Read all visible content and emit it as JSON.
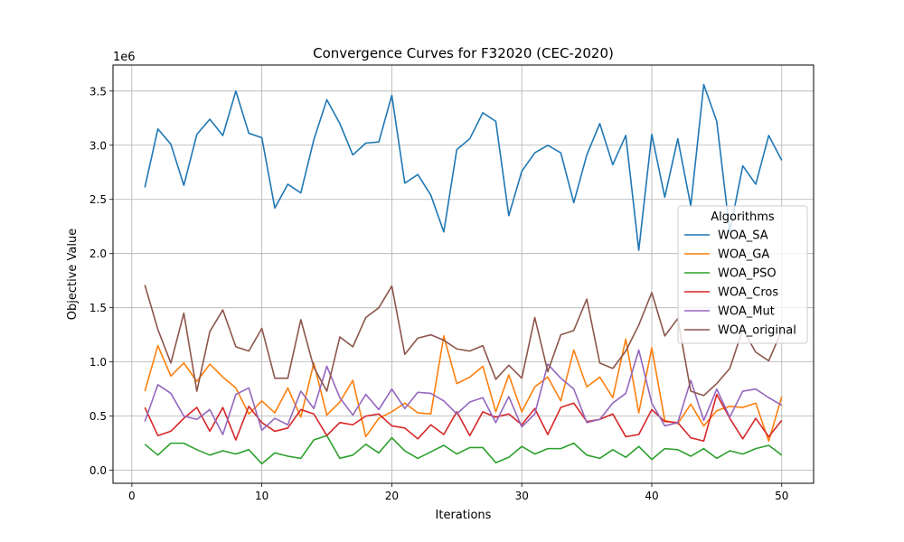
{
  "chart_data": {
    "type": "line",
    "title": "Convergence Curves for F32020 (CEC-2020)",
    "xlabel": "Iterations",
    "ylabel": "Objective Value",
    "y_offset_label": "1e6",
    "y_scale": 1000000,
    "xlim": [
      -1.45,
      52.45
    ],
    "ylim": [
      -120000,
      3740000
    ],
    "xticks": [
      0,
      10,
      20,
      30,
      40,
      50
    ],
    "xtick_labels": [
      "0",
      "10",
      "20",
      "30",
      "40",
      "50"
    ],
    "yticks": [
      0,
      500000,
      1000000,
      1500000,
      2000000,
      2500000,
      3000000,
      3500000
    ],
    "ytick_labels": [
      "0.0",
      "0.5",
      "1.0",
      "1.5",
      "2.0",
      "2.5",
      "3.0",
      "3.5"
    ],
    "grid": true,
    "legend_title": "Algorithms",
    "legend_position": "right",
    "x": [
      1,
      2,
      3,
      4,
      5,
      6,
      7,
      8,
      9,
      10,
      11,
      12,
      13,
      14,
      15,
      16,
      17,
      18,
      19,
      20,
      21,
      22,
      23,
      24,
      25,
      26,
      27,
      28,
      29,
      30,
      31,
      32,
      33,
      34,
      35,
      36,
      37,
      38,
      39,
      40,
      41,
      42,
      43,
      44,
      45,
      46,
      47,
      48,
      49,
      50
    ],
    "series": [
      {
        "name": "WOA_SA",
        "color": "#1f77b4",
        "values": [
          2610000,
          3150000,
          3010000,
          2630000,
          3100000,
          3240000,
          3090000,
          3500000,
          3110000,
          3070000,
          2420000,
          2640000,
          2560000,
          3050000,
          3420000,
          3200000,
          2910000,
          3020000,
          3030000,
          3460000,
          2650000,
          2730000,
          2540000,
          2200000,
          2960000,
          3060000,
          3300000,
          3220000,
          2350000,
          2760000,
          2930000,
          3000000,
          2930000,
          2470000,
          2910000,
          3200000,
          2820000,
          3090000,
          2030000,
          3100000,
          2520000,
          3060000,
          2440000,
          3560000,
          3220000,
          2200000,
          2810000,
          2640000,
          3090000,
          2860000
        ]
      },
      {
        "name": "WOA_GA",
        "color": "#ff7f0e",
        "values": [
          730000,
          1150000,
          870000,
          990000,
          820000,
          980000,
          860000,
          760000,
          520000,
          640000,
          530000,
          760000,
          490000,
          990000,
          510000,
          630000,
          830000,
          310000,
          480000,
          540000,
          620000,
          530000,
          520000,
          1240000,
          800000,
          860000,
          960000,
          540000,
          880000,
          540000,
          770000,
          860000,
          640000,
          1110000,
          770000,
          860000,
          670000,
          1210000,
          530000,
          1130000,
          460000,
          430000,
          610000,
          410000,
          550000,
          590000,
          580000,
          620000,
          270000,
          680000
        ]
      },
      {
        "name": "WOA_PSO",
        "color": "#2ca02c",
        "values": [
          240000,
          140000,
          250000,
          250000,
          190000,
          140000,
          180000,
          150000,
          190000,
          60000,
          160000,
          130000,
          110000,
          280000,
          320000,
          110000,
          140000,
          240000,
          160000,
          300000,
          180000,
          110000,
          170000,
          230000,
          150000,
          210000,
          210000,
          70000,
          120000,
          220000,
          150000,
          200000,
          200000,
          250000,
          140000,
          110000,
          190000,
          120000,
          220000,
          100000,
          200000,
          190000,
          130000,
          200000,
          110000,
          180000,
          150000,
          200000,
          230000,
          140000
        ]
      },
      {
        "name": "WOA_Cros",
        "color": "#d62728",
        "values": [
          580000,
          320000,
          360000,
          480000,
          580000,
          360000,
          580000,
          280000,
          590000,
          440000,
          360000,
          390000,
          560000,
          520000,
          320000,
          440000,
          420000,
          500000,
          520000,
          410000,
          390000,
          290000,
          420000,
          330000,
          540000,
          320000,
          540000,
          490000,
          520000,
          420000,
          570000,
          330000,
          580000,
          620000,
          450000,
          470000,
          520000,
          310000,
          330000,
          560000,
          450000,
          440000,
          300000,
          270000,
          700000,
          480000,
          290000,
          480000,
          310000,
          460000
        ]
      },
      {
        "name": "WOA_Mut",
        "color": "#9467bd",
        "values": [
          450000,
          790000,
          710000,
          500000,
          470000,
          560000,
          330000,
          700000,
          760000,
          370000,
          480000,
          420000,
          730000,
          570000,
          960000,
          670000,
          510000,
          700000,
          560000,
          750000,
          570000,
          720000,
          710000,
          640000,
          520000,
          630000,
          670000,
          440000,
          680000,
          400000,
          520000,
          980000,
          850000,
          750000,
          440000,
          470000,
          620000,
          710000,
          1110000,
          620000,
          410000,
          440000,
          830000,
          460000,
          750000,
          490000,
          730000,
          750000,
          670000,
          600000
        ]
      },
      {
        "name": "WOA_original",
        "color": "#8c564b",
        "values": [
          1710000,
          1300000,
          990000,
          1450000,
          730000,
          1280000,
          1480000,
          1140000,
          1100000,
          1310000,
          850000,
          850000,
          1390000,
          950000,
          730000,
          1230000,
          1140000,
          1410000,
          1500000,
          1700000,
          1070000,
          1220000,
          1250000,
          1200000,
          1120000,
          1100000,
          1150000,
          840000,
          970000,
          850000,
          1410000,
          910000,
          1250000,
          1290000,
          1580000,
          990000,
          940000,
          1100000,
          1340000,
          1640000,
          1240000,
          1400000,
          730000,
          690000,
          800000,
          940000,
          1300000,
          1090000,
          1010000,
          1290000
        ]
      }
    ]
  }
}
